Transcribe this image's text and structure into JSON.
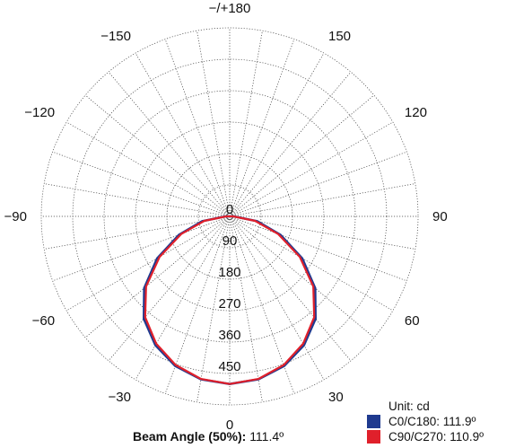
{
  "chart_data": {
    "type": "polar",
    "unit_label": "Unit: cd",
    "angle_labels": [
      {
        "deg": 180,
        "text": "−/+180"
      },
      {
        "deg": 150,
        "text": "150"
      },
      {
        "deg": -150,
        "text": "−150"
      },
      {
        "deg": 120,
        "text": "120"
      },
      {
        "deg": -120,
        "text": "−120"
      },
      {
        "deg": 90,
        "text": "90"
      },
      {
        "deg": -90,
        "text": "−90"
      },
      {
        "deg": 60,
        "text": "60"
      },
      {
        "deg": -60,
        "text": "−60"
      },
      {
        "deg": 30,
        "text": "30"
      },
      {
        "deg": -30,
        "text": "−30"
      },
      {
        "deg": 0,
        "text": "0"
      }
    ],
    "radial_ticks": [
      0,
      90,
      180,
      270,
      360,
      450
    ],
    "rmax": 540,
    "series": [
      {
        "name": "C0/C180: 111.9º",
        "color": "#1f3a8f",
        "points": [
          [
            0,
            480
          ],
          [
            10,
            474
          ],
          [
            20,
            456
          ],
          [
            30,
            426
          ],
          [
            40,
            383
          ],
          [
            50,
            320
          ],
          [
            60,
            240
          ],
          [
            70,
            155
          ],
          [
            80,
            80
          ],
          [
            90,
            12
          ]
        ]
      },
      {
        "name": "C90/C270: 110.9º",
        "color": "#e0202b",
        "points": [
          [
            0,
            480
          ],
          [
            10,
            473
          ],
          [
            20,
            453
          ],
          [
            30,
            421
          ],
          [
            40,
            377
          ],
          [
            50,
            313
          ],
          [
            60,
            232
          ],
          [
            70,
            148
          ],
          [
            80,
            74
          ],
          [
            90,
            10
          ]
        ]
      }
    ],
    "beam_angle": {
      "label": "Beam Angle (50%):",
      "value": "111.4º"
    }
  }
}
